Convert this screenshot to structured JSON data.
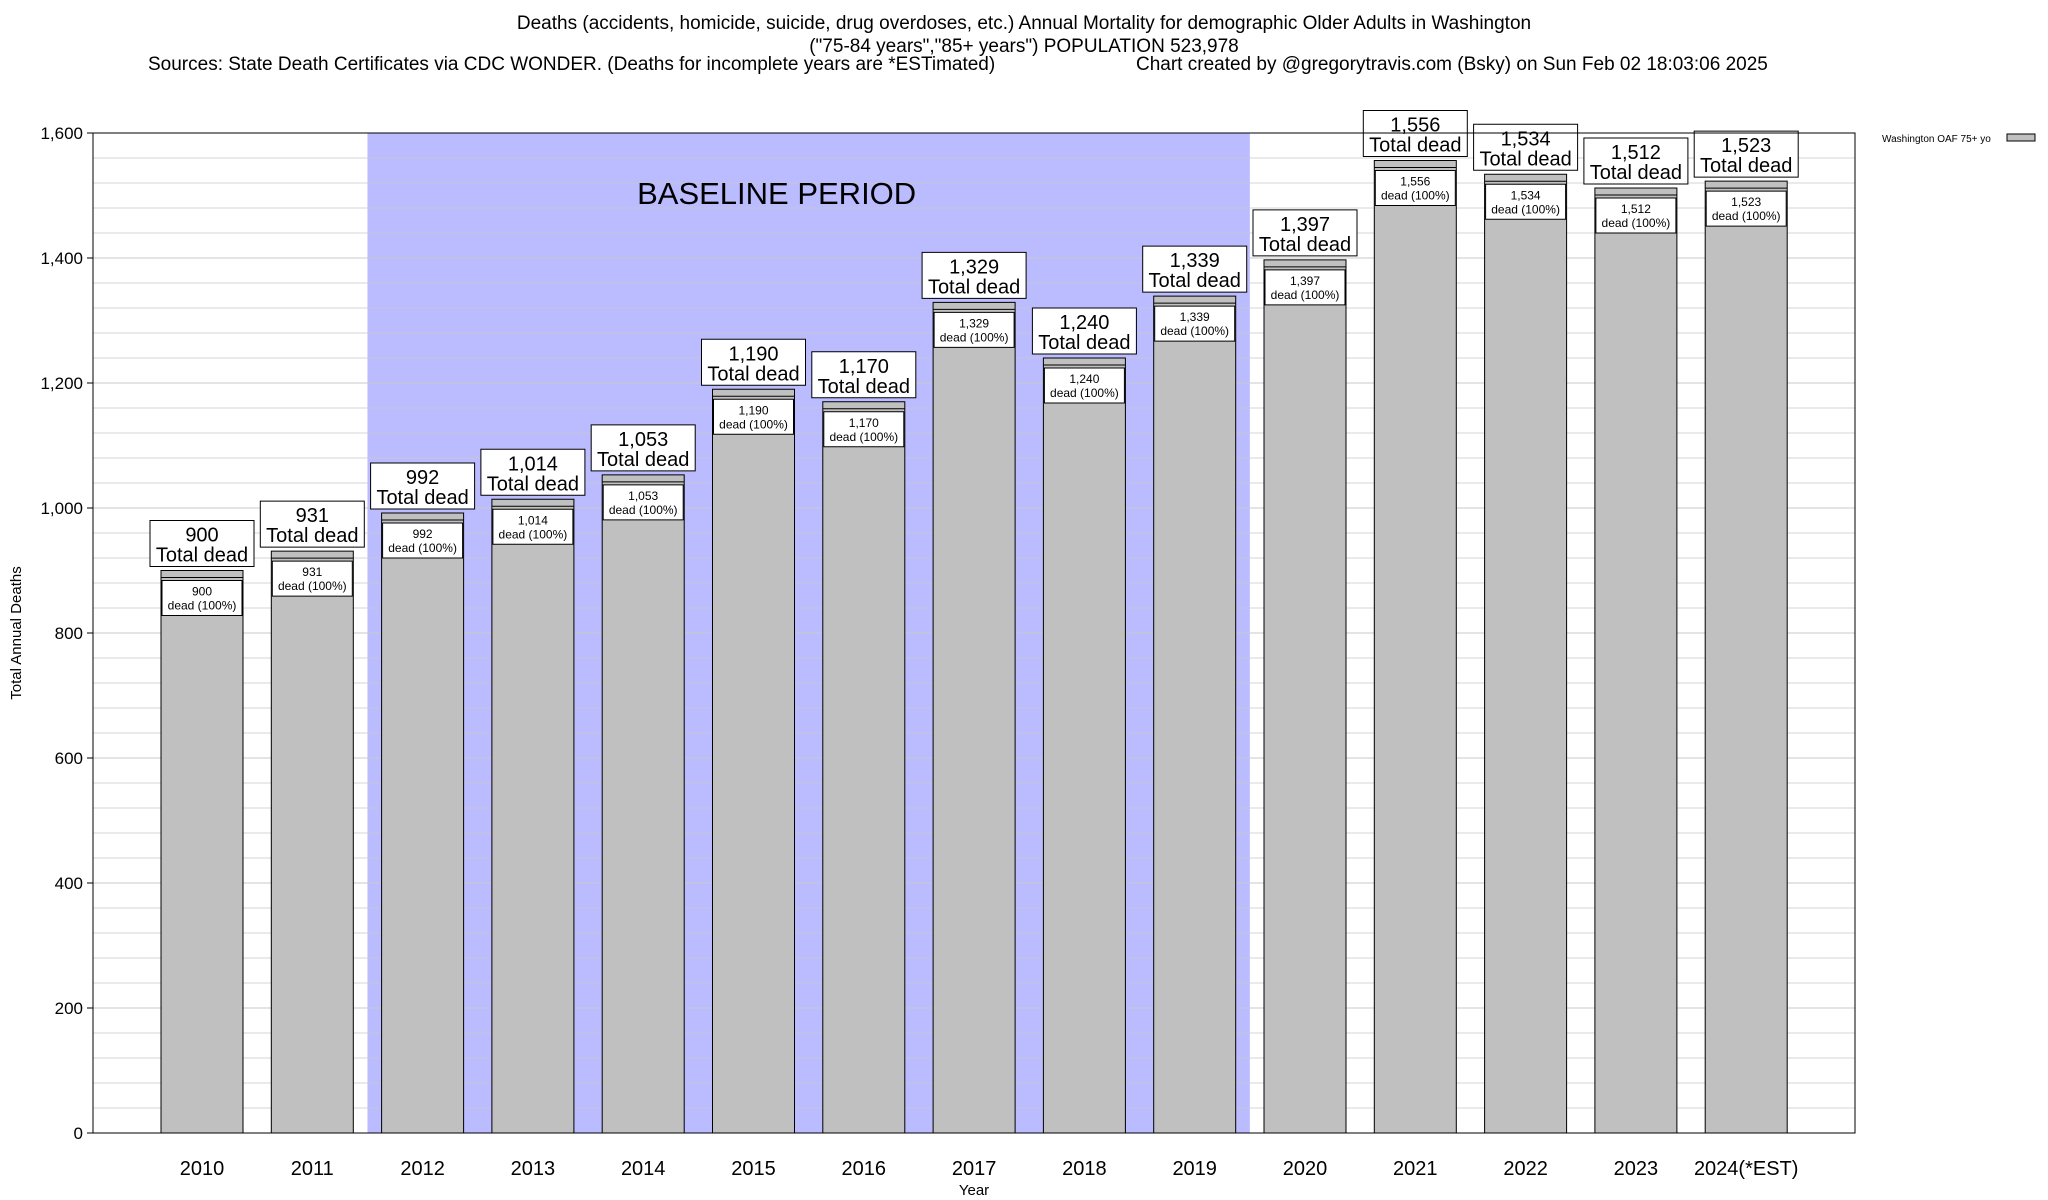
{
  "header": {
    "title_line1": "Deaths (accidents, homicide, suicide, drug overdoses, etc.) Annual Mortality for demographic Older Adults in Washington",
    "title_line2": "(\"75-84 years\",\"85+ years\") POPULATION 523,978",
    "sources": "Sources: State Death Certificates via CDC WONDER. (Deaths for incomplete years are *ESTimated)",
    "credit": "Chart created by @gregorytravis.com (Bsky) on Sun Feb 02 18:03:06 2025"
  },
  "chart_data": {
    "type": "bar",
    "categories": [
      "2010",
      "2011",
      "2012",
      "2013",
      "2014",
      "2015",
      "2016",
      "2017",
      "2018",
      "2019",
      "2020",
      "2021",
      "2022",
      "2023",
      "2024(*EST)"
    ],
    "series": [
      {
        "name": "Washington OAF 75+ yo",
        "values": [
          900,
          931,
          992,
          1014,
          1053,
          1190,
          1170,
          1329,
          1240,
          1339,
          1397,
          1556,
          1534,
          1512,
          1523
        ]
      }
    ],
    "value_labels": [
      "900",
      "931",
      "992",
      "1,014",
      "1,053",
      "1,190",
      "1,170",
      "1,329",
      "1,240",
      "1,339",
      "1,397",
      "1,556",
      "1,534",
      "1,512",
      "1,523"
    ],
    "top_label_suffix": "Total dead",
    "inner_label_suffix": "dead (100%)",
    "xlabel": "Year",
    "ylabel": "Total Annual Deaths",
    "ylim": [
      0,
      1600
    ],
    "yticks": [
      0,
      200,
      400,
      600,
      800,
      1000,
      1200,
      1400,
      1600
    ],
    "ytick_labels": [
      "0",
      "200",
      "400",
      "600",
      "800",
      "1,000",
      "1,200",
      "1,400",
      "1,600"
    ],
    "minor_grid_step": 40,
    "grid": true,
    "baseline_period": {
      "label": "BASELINE PERIOD",
      "start": "2012",
      "end": "2019"
    },
    "legend_position": "top-right",
    "colors": {
      "bar": "#c0c0c0",
      "baseline": "#bbbbff",
      "grid": "#c8c8c8"
    }
  }
}
